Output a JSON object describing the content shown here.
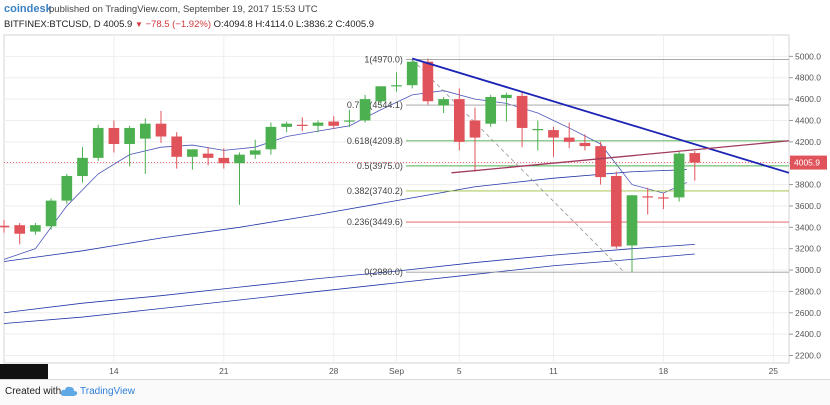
{
  "header": {
    "brand": "coindesk",
    "published": "published on TradingView.com, September 19, 2017 15:53 UTC",
    "symbol": "BITFINEX:BTCUSD, D",
    "last": "4005.9",
    "change": "−78.5 (−1.92%)",
    "ohlc_open": "O:4094.8",
    "ohlc_high": "H:4114.0",
    "ohlc_low": "L:3836.2",
    "ohlc_close": "C:4005.9"
  },
  "footer": {
    "created_with": "Created with",
    "tradingview": "TradingView"
  },
  "colors": {
    "up": "#4caf50",
    "down": "#e0535a",
    "trendline": "#1c24b5",
    "fib_grey": "#9e9e9e",
    "fib_green": "#4caf50",
    "fib_red": "#e0535a",
    "fib_yellow": "#9bbd3a",
    "ma": "#2336a8",
    "channel": "#a03a5e",
    "price_tag": "#e0535a"
  },
  "chart_data": {
    "type": "candlestick",
    "price_tag": "4005.9",
    "y_ticks": [
      "5000.0",
      "4800.0",
      "4600.0",
      "4400.0",
      "4200.0",
      "4000.0",
      "3800.0",
      "3600.0",
      "3400.0",
      "3200.0",
      "3000.0",
      "2800.0",
      "2600.0",
      "2400.0",
      "2200.0"
    ],
    "y_tick_values": [
      5000,
      4800,
      4600,
      4400,
      4200,
      4000,
      3800,
      3600,
      3400,
      3200,
      3000,
      2800,
      2600,
      2400,
      2200
    ],
    "ylim": [
      2130,
      5200
    ],
    "x_ticks": [
      {
        "label": "14",
        "day": 14
      },
      {
        "label": "21",
        "day": 21
      },
      {
        "label": "28",
        "day": 28
      },
      {
        "label": "Sep",
        "day": 32
      },
      {
        "label": "5",
        "day": 36
      },
      {
        "label": "11",
        "day": 42
      },
      {
        "label": "18",
        "day": 49
      },
      {
        "label": "25",
        "day": 56
      }
    ],
    "x_range": [
      7,
      57
    ],
    "candles": [
      {
        "d": 7,
        "o": 3415,
        "h": 3470,
        "l": 3350,
        "c": 3400
      },
      {
        "d": 8,
        "o": 3420,
        "h": 3440,
        "l": 3240,
        "c": 3340
      },
      {
        "d": 9,
        "o": 3360,
        "h": 3440,
        "l": 3330,
        "c": 3420
      },
      {
        "d": 10,
        "o": 3410,
        "h": 3670,
        "l": 3380,
        "c": 3650
      },
      {
        "d": 11,
        "o": 3650,
        "h": 3900,
        "l": 3620,
        "c": 3880
      },
      {
        "d": 12,
        "o": 3880,
        "h": 4150,
        "l": 3820,
        "c": 4050
      },
      {
        "d": 13,
        "o": 4050,
        "h": 4360,
        "l": 4020,
        "c": 4330
      },
      {
        "d": 14,
        "o": 4330,
        "h": 4400,
        "l": 4100,
        "c": 4180
      },
      {
        "d": 15,
        "o": 4180,
        "h": 4350,
        "l": 3970,
        "c": 4330
      },
      {
        "d": 16,
        "o": 4230,
        "h": 4420,
        "l": 3900,
        "c": 4370
      },
      {
        "d": 17,
        "o": 4370,
        "h": 4490,
        "l": 4190,
        "c": 4250
      },
      {
        "d": 18,
        "o": 4250,
        "h": 4290,
        "l": 3950,
        "c": 4060
      },
      {
        "d": 19,
        "o": 4060,
        "h": 4130,
        "l": 3940,
        "c": 4130
      },
      {
        "d": 20,
        "o": 4090,
        "h": 4150,
        "l": 3980,
        "c": 4050
      },
      {
        "d": 21,
        "o": 4050,
        "h": 4140,
        "l": 3950,
        "c": 4000
      },
      {
        "d": 22,
        "o": 4000,
        "h": 4100,
        "l": 3610,
        "c": 4080
      },
      {
        "d": 23,
        "o": 4080,
        "h": 4220,
        "l": 4040,
        "c": 4120
      },
      {
        "d": 24,
        "o": 4130,
        "h": 4380,
        "l": 4080,
        "c": 4340
      },
      {
        "d": 25,
        "o": 4340,
        "h": 4390,
        "l": 4290,
        "c": 4370
      },
      {
        "d": 26,
        "o": 4360,
        "h": 4430,
        "l": 4300,
        "c": 4350
      },
      {
        "d": 27,
        "o": 4350,
        "h": 4400,
        "l": 4290,
        "c": 4380
      },
      {
        "d": 28,
        "o": 4390,
        "h": 4440,
        "l": 4320,
        "c": 4350
      },
      {
        "d": 29,
        "o": 4390,
        "h": 4500,
        "l": 4340,
        "c": 4400
      },
      {
        "d": 30,
        "o": 4400,
        "h": 4640,
        "l": 4380,
        "c": 4600
      },
      {
        "d": 31,
        "o": 4580,
        "h": 4700,
        "l": 4540,
        "c": 4720
      },
      {
        "d": 32,
        "o": 4720,
        "h": 4850,
        "l": 4670,
        "c": 4730
      },
      {
        "d": 33,
        "o": 4730,
        "h": 4970,
        "l": 4700,
        "c": 4950
      },
      {
        "d": 34,
        "o": 4950,
        "h": 4980,
        "l": 4550,
        "c": 4580
      },
      {
        "d": 35,
        "o": 4540,
        "h": 4620,
        "l": 4470,
        "c": 4600
      },
      {
        "d": 36,
        "o": 4600,
        "h": 4700,
        "l": 4120,
        "c": 4200
      },
      {
        "d": 37,
        "o": 4400,
        "h": 4520,
        "l": 3920,
        "c": 4240
      },
      {
        "d": 38,
        "o": 4370,
        "h": 4640,
        "l": 4340,
        "c": 4620
      },
      {
        "d": 39,
        "o": 4610,
        "h": 4660,
        "l": 4390,
        "c": 4640
      },
      {
        "d": 40,
        "o": 4630,
        "h": 4660,
        "l": 4150,
        "c": 4330
      },
      {
        "d": 41,
        "o": 4320,
        "h": 4400,
        "l": 4120,
        "c": 4320
      },
      {
        "d": 42,
        "o": 4310,
        "h": 4340,
        "l": 4060,
        "c": 4240
      },
      {
        "d": 43,
        "o": 4240,
        "h": 4380,
        "l": 4140,
        "c": 4200
      },
      {
        "d": 44,
        "o": 4190,
        "h": 4270,
        "l": 4120,
        "c": 4160
      },
      {
        "d": 45,
        "o": 4160,
        "h": 4200,
        "l": 3800,
        "c": 3870
      },
      {
        "d": 46,
        "o": 3880,
        "h": 3920,
        "l": 3200,
        "c": 3220
      },
      {
        "d": 47,
        "o": 3230,
        "h": 3700,
        "l": 2980,
        "c": 3700
      },
      {
        "d": 48,
        "o": 3690,
        "h": 3770,
        "l": 3520,
        "c": 3680
      },
      {
        "d": 49,
        "o": 3680,
        "h": 3720,
        "l": 3570,
        "c": 3670
      },
      {
        "d": 50,
        "o": 3680,
        "h": 4110,
        "l": 3640,
        "c": 4090
      },
      {
        "d": 51,
        "o": 4094.8,
        "h": 4114,
        "l": 3836.2,
        "c": 4005.9
      }
    ],
    "fib_levels": [
      {
        "label": "1(4970.0)",
        "value": 4970,
        "color": "#9e9e9e"
      },
      {
        "label": "0.786(4544.1)",
        "value": 4544.1,
        "color": "#9e9e9e"
      },
      {
        "label": "0.618(4209.8)",
        "value": 4209.8,
        "color": "#4caf50"
      },
      {
        "label": "0.5(3975.0)",
        "value": 3975,
        "color": "#4caf50"
      },
      {
        "label": "0.382(3740.2)",
        "value": 3740.2,
        "color": "#9bbd3a"
      },
      {
        "label": "0.236(3449.6)",
        "value": 3449.6,
        "color": "#e0535a"
      },
      {
        "label": "0(2980.0)",
        "value": 2980,
        "color": "#9e9e9e"
      }
    ],
    "fib_x_range": [
      32.6,
      57
    ],
    "downtrend": {
      "from": {
        "d": 33,
        "v": 4980
      },
      "to": {
        "d": 57,
        "v": 3910
      }
    },
    "channel_line": {
      "from": {
        "d": 35.5,
        "v": 3910
      },
      "to": {
        "d": 57,
        "v": 4210
      }
    },
    "fib_diagonal": {
      "from": {
        "d": 33,
        "v": 4970
      },
      "to": {
        "d": 46.5,
        "v": 2980
      }
    },
    "ma_short": [
      [
        7,
        3100
      ],
      [
        9,
        3200
      ],
      [
        11,
        3600
      ],
      [
        13,
        3900
      ],
      [
        15,
        4080
      ],
      [
        17,
        4150
      ],
      [
        19,
        4170
      ],
      [
        21,
        4120
      ],
      [
        23,
        4150
      ],
      [
        25,
        4250
      ],
      [
        27,
        4300
      ],
      [
        29,
        4350
      ],
      [
        31,
        4500
      ],
      [
        33,
        4640
      ],
      [
        35,
        4680
      ],
      [
        37,
        4600
      ],
      [
        39,
        4560
      ],
      [
        41,
        4470
      ],
      [
        43,
        4330
      ],
      [
        45,
        4180
      ],
      [
        47,
        3800
      ],
      [
        49,
        3720
      ],
      [
        50.5,
        3820
      ]
    ],
    "ma_long": [
      [
        7,
        3080
      ],
      [
        12,
        3180
      ],
      [
        17,
        3300
      ],
      [
        22,
        3400
      ],
      [
        27,
        3520
      ],
      [
        32,
        3650
      ],
      [
        37,
        3780
      ],
      [
        42,
        3860
      ],
      [
        47,
        3920
      ],
      [
        50.5,
        3940
      ]
    ],
    "ma_200": [
      [
        7,
        2600
      ],
      [
        12,
        2690
      ],
      [
        17,
        2760
      ],
      [
        22,
        2840
      ],
      [
        27,
        2920
      ],
      [
        32,
        2990
      ],
      [
        37,
        3070
      ],
      [
        42,
        3140
      ],
      [
        47,
        3200
      ],
      [
        51,
        3240
      ]
    ],
    "ma_bottom": [
      [
        7,
        2500
      ],
      [
        12,
        2560
      ],
      [
        17,
        2640
      ],
      [
        22,
        2720
      ],
      [
        27,
        2800
      ],
      [
        32,
        2880
      ],
      [
        37,
        2960
      ],
      [
        42,
        3040
      ],
      [
        47,
        3100
      ],
      [
        51,
        3150
      ]
    ]
  }
}
